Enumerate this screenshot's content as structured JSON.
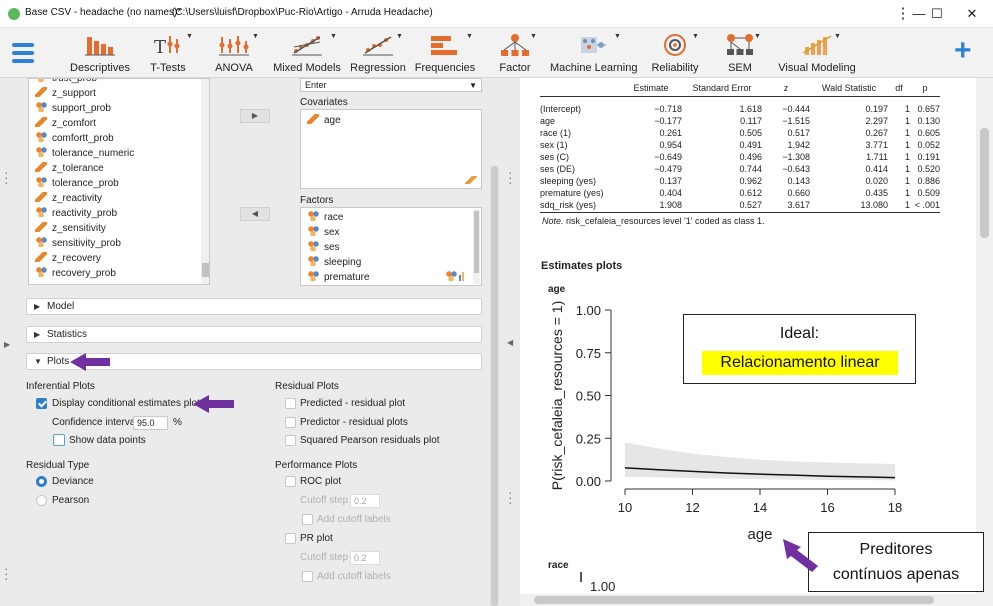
{
  "window": {
    "title": "Base CSV - headache (no names)*",
    "path": "(C:\\Users\\luisf\\Dropbox\\Puc-Rio\\Artigo - Arruda Headache)",
    "min": "—",
    "max": "☐",
    "close": "✕",
    "more": "⋮"
  },
  "toolbar": {
    "menu_icon": "hamburger-icon",
    "items": [
      {
        "label": "Descriptives",
        "icon": "bar-chart-icon"
      },
      {
        "label": "T-Tests",
        "icon": "ttest-icon"
      },
      {
        "label": "ANOVA",
        "icon": "anova-icon"
      },
      {
        "label": "Mixed Models",
        "icon": "mixed-models-icon"
      },
      {
        "label": "Regression",
        "icon": "regression-icon"
      },
      {
        "label": "Frequencies",
        "icon": "frequencies-icon"
      },
      {
        "label": "Factor",
        "icon": "factor-icon"
      },
      {
        "label": "Machine Learning",
        "icon": "machine-learning-icon"
      },
      {
        "label": "Reliability",
        "icon": "reliability-icon"
      },
      {
        "label": "SEM",
        "icon": "sem-icon"
      },
      {
        "label": "Visual Modeling",
        "icon": "visual-modeling-icon"
      }
    ],
    "add_label": "+"
  },
  "variables": [
    {
      "name": "trust_prob",
      "type": "nom"
    },
    {
      "name": "z_support",
      "type": "ord"
    },
    {
      "name": "support_prob",
      "type": "nom"
    },
    {
      "name": "z_comfort",
      "type": "ord"
    },
    {
      "name": "comfortt_prob",
      "type": "nom"
    },
    {
      "name": "tolerance_numeric",
      "type": "nom"
    },
    {
      "name": "z_tolerance",
      "type": "ord"
    },
    {
      "name": "tolerance_prob",
      "type": "nom"
    },
    {
      "name": "z_reactivity",
      "type": "ord"
    },
    {
      "name": "reactivity_prob",
      "type": "nom"
    },
    {
      "name": "z_sensitivity",
      "type": "ord"
    },
    {
      "name": "sensitivity_prob",
      "type": "nom"
    },
    {
      "name": "z_recovery",
      "type": "ord"
    },
    {
      "name": "recovery_prob",
      "type": "nom"
    }
  ],
  "enter_label": "Enter",
  "covariates": {
    "label": "Covariates",
    "items": [
      "age"
    ]
  },
  "factors": {
    "label": "Factors",
    "items": [
      "race",
      "sex",
      "ses",
      "sleeping",
      "premature"
    ]
  },
  "sections": {
    "model": "Model",
    "statistics": "Statistics",
    "plots": "Plots"
  },
  "inferential": {
    "title": "Inferential Plots",
    "display_cond": "Display conditional estimates plots",
    "ci_label": "Confidence interval",
    "ci_value": "95.0",
    "ci_unit": "%",
    "show_points": "Show data points"
  },
  "residual_plots": {
    "title": "Residual Plots",
    "items": [
      "Predicted - residual plot",
      "Predictor - residual plots",
      "Squared Pearson residuals plot"
    ]
  },
  "residual_type": {
    "title": "Residual Type",
    "options": [
      "Deviance",
      "Pearson"
    ],
    "selected": "Deviance"
  },
  "performance": {
    "title": "Performance Plots",
    "roc": "ROC plot",
    "cutoff_step": "Cutoff step",
    "cutoff_val": "0.2",
    "add_cutoff": "Add cutoff labels",
    "pr": "PR plot",
    "cutoff_step2": "Cutoff step",
    "cutoff_val2": "0.2",
    "add_cutoff2": "Add cutoff labels"
  },
  "results_table": {
    "headers": [
      "",
      "Estimate",
      "Standard Error",
      "z",
      "Wald Statistic",
      "df",
      "p"
    ],
    "rows": [
      [
        "(Intercept)",
        "−0.718",
        "1.618",
        "−0.444",
        "0.197",
        "1",
        "0.657"
      ],
      [
        "age",
        "−0.177",
        "0.117",
        "−1.515",
        "2.297",
        "1",
        "0.130"
      ],
      [
        "race (1)",
        "0.261",
        "0.505",
        "0.517",
        "0.267",
        "1",
        "0.605"
      ],
      [
        "sex (1)",
        "0.954",
        "0.491",
        "1.942",
        "3.771",
        "1",
        "0.052"
      ],
      [
        "ses (C)",
        "−0.649",
        "0.496",
        "−1.308",
        "1.711",
        "1",
        "0.191"
      ],
      [
        "ses (DE)",
        "−0.479",
        "0.744",
        "−0.643",
        "0.414",
        "1",
        "0.520"
      ],
      [
        "sleeping (yes)",
        "0.137",
        "0.962",
        "0.143",
        "0.020",
        "1",
        "0.886"
      ],
      [
        "premature (yes)",
        "0.404",
        "0.612",
        "0.660",
        "0.435",
        "1",
        "0.509"
      ],
      [
        "sdq_risk (yes)",
        "1.908",
        "0.527",
        "3.617",
        "13.080",
        "1",
        "< .001"
      ]
    ],
    "note": "Note.",
    "note_text": " risk_cefaleia_resources level '1' coded as class 1."
  },
  "estimates_title": "Estimates plots",
  "chart_data": {
    "type": "line",
    "title": "age",
    "xlabel": "age",
    "ylabel": "P(risk_cefaleia_resources = 1)",
    "xlim": [
      10,
      18
    ],
    "ylim": [
      0,
      1
    ],
    "xticks": [
      "10",
      "12",
      "14",
      "16",
      "18"
    ],
    "yticks": [
      "0.00",
      "0.25",
      "0.50",
      "0.75",
      "1.00"
    ],
    "x": [
      10,
      11,
      12,
      13,
      14,
      15,
      16,
      17,
      18
    ],
    "y": [
      0.077,
      0.066,
      0.056,
      0.047,
      0.04,
      0.034,
      0.028,
      0.024,
      0.02
    ],
    "lower": [
      0.025,
      0.021,
      0.017,
      0.013,
      0.01,
      0.008,
      0.006,
      0.005,
      0.004
    ],
    "upper": [
      0.225,
      0.19,
      0.16,
      0.14,
      0.125,
      0.115,
      0.108,
      0.103,
      0.1
    ]
  },
  "race_chart": {
    "title": "race",
    "ytick": "1.00"
  },
  "callouts": {
    "ideal_line1": "Ideal:",
    "ideal_line2": "Relacionamento linear",
    "pred_line1": "Preditores",
    "pred_line2": "contínuos apenas"
  }
}
